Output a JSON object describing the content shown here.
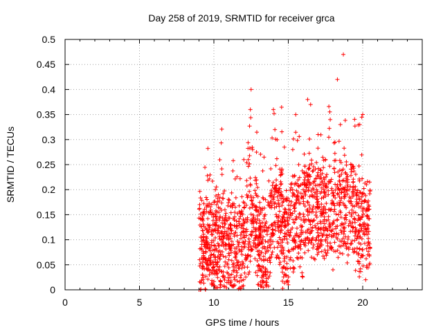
{
  "chart_data": {
    "type": "scatter",
    "title": "Day 258 of 2019, SRMTID for receiver grca",
    "xlabel": "GPS time / hours",
    "ylabel": "SRMTID / TECUs",
    "xlim": [
      0,
      24
    ],
    "ylim": [
      0,
      0.5
    ],
    "xticks": [
      0,
      5,
      10,
      15,
      20
    ],
    "xtick_labels": [
      "0",
      "5",
      "10",
      "15",
      "20"
    ],
    "yticks": [
      0,
      0.05,
      0.1,
      0.15,
      0.2,
      0.25,
      0.3,
      0.35,
      0.4,
      0.45,
      0.5
    ],
    "ytick_labels": [
      "0",
      "0.05",
      "0.1",
      "0.15",
      "0.2",
      "0.25",
      "0.3",
      "0.35",
      "0.4",
      "0.45",
      "0.5"
    ],
    "grid": true,
    "marker": "+",
    "marker_color": "#ff0000",
    "x_data_range": [
      9.0,
      20.5
    ],
    "series": [
      {
        "name": "SRMTID",
        "points": [
          [
            9.0,
            0.0
          ],
          [
            9.1,
            0.0
          ],
          [
            9.2,
            0.08
          ],
          [
            9.3,
            0.1
          ],
          [
            9.4,
            0.06
          ],
          [
            9.5,
            0.12
          ],
          [
            9.6,
            0.09
          ],
          [
            9.7,
            0.03
          ],
          [
            9.85,
            0.01
          ],
          [
            10.0,
            0.07
          ],
          [
            10.1,
            0.2
          ],
          [
            10.3,
            0.19
          ],
          [
            10.5,
            0.1
          ],
          [
            11.0,
            0.06
          ],
          [
            11.5,
            0.07
          ],
          [
            12.0,
            0.02
          ],
          [
            12.5,
            0.4
          ],
          [
            12.45,
            0.36
          ],
          [
            12.6,
            0.28
          ],
          [
            12.8,
            0.16
          ],
          [
            13.0,
            0.07
          ],
          [
            13.5,
            0.04
          ],
          [
            14.0,
            0.36
          ],
          [
            14.1,
            0.32
          ],
          [
            14.3,
            0.2
          ],
          [
            14.5,
            0.1
          ],
          [
            15.0,
            0.01
          ],
          [
            15.3,
            0.28
          ],
          [
            15.5,
            0.35
          ],
          [
            15.7,
            0.25
          ],
          [
            16.0,
            0.2
          ],
          [
            16.3,
            0.38
          ],
          [
            16.5,
            0.37
          ],
          [
            17.0,
            0.31
          ],
          [
            17.5,
            0.1
          ],
          [
            18.0,
            0.04
          ],
          [
            18.3,
            0.42
          ],
          [
            18.5,
            0.33
          ],
          [
            18.7,
            0.47
          ],
          [
            19.0,
            0.22
          ],
          [
            19.5,
            0.2
          ],
          [
            19.8,
            0.33
          ],
          [
            20.0,
            0.08
          ],
          [
            20.2,
            0.02
          ],
          [
            20.3,
            0.13
          ],
          [
            20.45,
            0.05
          ]
        ]
      }
    ]
  }
}
